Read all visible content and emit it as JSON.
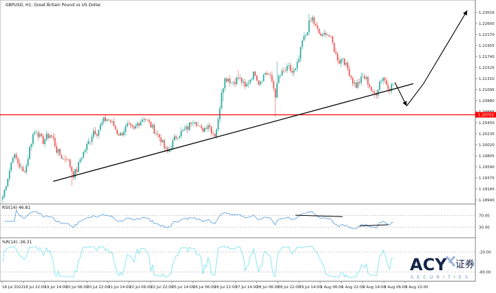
{
  "chart_data": [
    {
      "type": "candlestick",
      "title": "GBPUSD, H1: Great Britain Pound vs US Dollar",
      "price_axis_ticks": [
        "1.23016",
        "1.22600",
        "1.22170",
        "1.21955",
        "1.21740",
        "1.21525",
        "1.21310",
        "1.21095",
        "1.20880",
        "1.20665",
        "1.20450",
        "1.20235",
        "1.20020",
        "1.19805",
        "1.19590",
        "1.19375",
        "1.19160",
        "1.18940"
      ],
      "ylim": [
        1.188,
        1.2315
      ],
      "highlight_price": {
        "value": 1.2075,
        "label": "1.20753",
        "color": "#ff0000"
      },
      "time_axis_ticks": [
        "18 Jul 2022",
        "18 Jul 22:00",
        "19 Jul 14:00",
        "20 Jul 06:00",
        "20 Jul 22:00",
        "21 Jul 14:00",
        "22 Jul 06:00",
        "22 Jul 22:00",
        "25 Jul 14:00",
        "26 Jul 06:00",
        "26 Jul 22:00",
        "27 Jul 14:00",
        "28 Jul 06:00",
        "28 Jul 22:00",
        "29 Jul 14:00",
        "1 Aug 06:00",
        "1 Aug 22:00",
        "2 Aug 14:00",
        "3 Aug 06:00",
        "3 Aug 22:00"
      ],
      "bull_color": "#26a69a",
      "bear_color": "#ef5350",
      "close_path": [
        [
          0,
          1.189
        ],
        [
          2,
          1.192
        ],
        [
          4,
          1.195
        ],
        [
          6,
          1.1985
        ],
        [
          8,
          1.1975
        ],
        [
          10,
          1.196
        ],
        [
          12,
          1.1945
        ],
        [
          14,
          1.196
        ],
        [
          16,
          1.2
        ],
        [
          18,
          1.203
        ],
        [
          20,
          1.204
        ],
        [
          22,
          1.2025
        ],
        [
          24,
          1.2015
        ],
        [
          26,
          1.2025
        ],
        [
          28,
          1.203
        ],
        [
          30,
          1.202
        ],
        [
          32,
          1.1995
        ],
        [
          34,
          1.1985
        ],
        [
          36,
          1.1975
        ],
        [
          38,
          1.198
        ],
        [
          40,
          1.196
        ],
        [
          42,
          1.194
        ],
        [
          44,
          1.195
        ],
        [
          46,
          1.1975
        ],
        [
          48,
          1.199
        ],
        [
          50,
          1.2005
        ],
        [
          52,
          1.202
        ],
        [
          54,
          1.204
        ],
        [
          56,
          1.2035
        ],
        [
          58,
          1.205
        ],
        [
          60,
          1.2062
        ],
        [
          62,
          1.2065
        ],
        [
          64,
          1.206
        ],
        [
          66,
          1.205
        ],
        [
          68,
          1.2035
        ],
        [
          70,
          1.203
        ],
        [
          72,
          1.204
        ],
        [
          74,
          1.205
        ],
        [
          76,
          1.2045
        ],
        [
          78,
          1.204
        ],
        [
          80,
          1.2055
        ],
        [
          82,
          1.2062
        ],
        [
          84,
          1.207
        ],
        [
          86,
          1.206
        ],
        [
          88,
          1.205
        ],
        [
          90,
          1.204
        ],
        [
          92,
          1.203
        ],
        [
          94,
          1.202
        ],
        [
          96,
          1.2
        ],
        [
          98,
          1.199
        ],
        [
          100,
          1.2005
        ],
        [
          102,
          1.202
        ],
        [
          104,
          1.203
        ],
        [
          106,
          1.2035
        ],
        [
          108,
          1.204
        ],
        [
          110,
          1.2045
        ],
        [
          112,
          1.206
        ],
        [
          114,
          1.2065
        ],
        [
          116,
          1.205
        ],
        [
          118,
          1.204
        ],
        [
          120,
          1.2045
        ],
        [
          122,
          1.2055
        ],
        [
          124,
          1.204
        ],
        [
          126,
          1.203
        ],
        [
          128,
          1.206
        ],
        [
          130,
          1.213
        ],
        [
          132,
          1.2155
        ],
        [
          134,
          1.2158
        ],
        [
          136,
          1.2148
        ],
        [
          138,
          1.2152
        ],
        [
          140,
          1.2158
        ],
        [
          142,
          1.215
        ],
        [
          144,
          1.2135
        ],
        [
          146,
          1.215
        ],
        [
          148,
          1.2162
        ],
        [
          150,
          1.217
        ],
        [
          152,
          1.2148
        ],
        [
          154,
          1.2158
        ],
        [
          156,
          1.217
        ],
        [
          158,
          1.2165
        ],
        [
          160,
          1.215
        ],
        [
          162,
          1.212
        ],
        [
          164,
          1.216
        ],
        [
          166,
          1.2168
        ],
        [
          168,
          1.2175
        ],
        [
          170,
          1.218
        ],
        [
          172,
          1.217
        ],
        [
          174,
          1.2175
        ],
        [
          176,
          1.22
        ],
        [
          178,
          1.224
        ],
        [
          180,
          1.2255
        ],
        [
          182,
          1.228
        ],
        [
          184,
          1.2292
        ],
        [
          186,
          1.2272
        ],
        [
          188,
          1.2258
        ],
        [
          190,
          1.225
        ],
        [
          192,
          1.2262
        ],
        [
          194,
          1.2252
        ],
        [
          196,
          1.2235
        ],
        [
          198,
          1.221
        ],
        [
          200,
          1.2195
        ],
        [
          202,
          1.2205
        ],
        [
          204,
          1.2185
        ],
        [
          206,
          1.217
        ],
        [
          208,
          1.215
        ],
        [
          210,
          1.214
        ],
        [
          212,
          1.215
        ],
        [
          214,
          1.216
        ],
        [
          216,
          1.2155
        ],
        [
          218,
          1.214
        ],
        [
          220,
          1.212
        ],
        [
          222,
          1.2125
        ],
        [
          224,
          1.215
        ],
        [
          226,
          1.216
        ],
        [
          228,
          1.2145
        ],
        [
          230,
          1.2135
        ],
        [
          232,
          1.2145
        ]
      ],
      "spikes": [
        [
          162,
          1.207
        ],
        [
          163,
          1.2195
        ],
        [
          131,
          1.2105
        ],
        [
          140,
          1.2175
        ],
        [
          182,
          1.2302
        ],
        [
          185,
          1.2298
        ],
        [
          41,
          1.1915
        ],
        [
          221,
          1.2112
        ]
      ],
      "annotations": {
        "trendline": [
          [
            30,
            1.1925
          ],
          [
            244,
            1.2145
          ]
        ],
        "forecast_arrow": [
          [
            233,
            1.2148
          ],
          [
            240,
            1.2095
          ],
          [
            250,
            1.2145
          ],
          [
            276,
            1.231
          ]
        ]
      }
    },
    {
      "type": "line",
      "title": "RSI(14) 46.81",
      "indicator": "RSI",
      "period": 14,
      "levels": [
        70,
        30
      ],
      "level_labels": [
        "70.00",
        "30.00"
      ],
      "ylim": [
        0,
        100
      ],
      "color": "#3d8fd8",
      "last_value": 46.81,
      "annotations": {
        "divergence_high": [
          [
            174,
            71
          ],
          [
            202,
            66
          ]
        ],
        "divergence_low": [
          [
            212,
            34
          ],
          [
            229,
            38
          ]
        ]
      }
    },
    {
      "type": "line",
      "title": "%R(14) -36.31",
      "indicator": "Williams %R",
      "period": 14,
      "levels": [
        -20,
        -80
      ],
      "level_labels": [
        "-20.00",
        "-80.00"
      ],
      "ylim": [
        -100,
        0
      ],
      "color": "#5cdde8",
      "last_value": -36.31
    }
  ],
  "logo": {
    "brand": "ACY",
    "chinese": "证券",
    "tagline": "SECURITIES",
    "colors": {
      "dark": "#14264a",
      "accent": "#6f8fc6",
      "light": "#9fb5db"
    }
  }
}
